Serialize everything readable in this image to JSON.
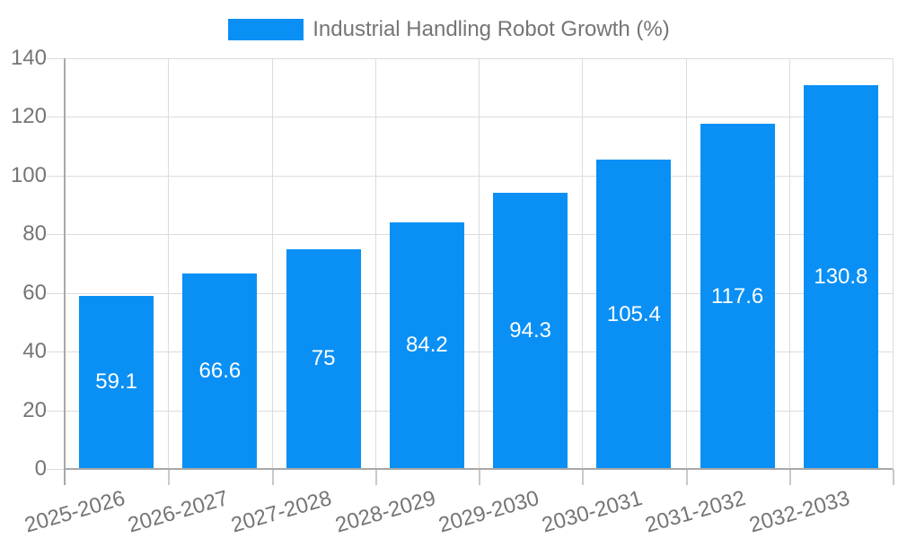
{
  "chart_data": {
    "type": "bar",
    "title": "Industrial Handling Robot Growth (%)",
    "categories": [
      "2025-2026",
      "2026-2027",
      "2027-2028",
      "2028-2029",
      "2029-2030",
      "2030-2031",
      "2031-2032",
      "2032-2033"
    ],
    "values": [
      59.1,
      66.6,
      75,
      84.2,
      94.3,
      105.4,
      117.6,
      130.8
    ],
    "value_labels": [
      "59.1",
      "66.6",
      "75",
      "84.2",
      "94.3",
      "105.4",
      "117.6",
      "130.8"
    ],
    "xlabel": "",
    "ylabel": "",
    "ylim": [
      0,
      140
    ],
    "yticks": [
      0,
      20,
      40,
      60,
      80,
      100,
      120,
      140
    ],
    "grid": true,
    "legend_position": "top",
    "x_label_rotation_deg": -16,
    "colors": {
      "bar": "#0a90f5",
      "axis_text": "#757575",
      "value_label": "#ffffff",
      "gridline": "#dcdcdc",
      "axis_line": "#a8a8a8",
      "tick": "#c9c9c9",
      "background": "#ffffff"
    }
  }
}
